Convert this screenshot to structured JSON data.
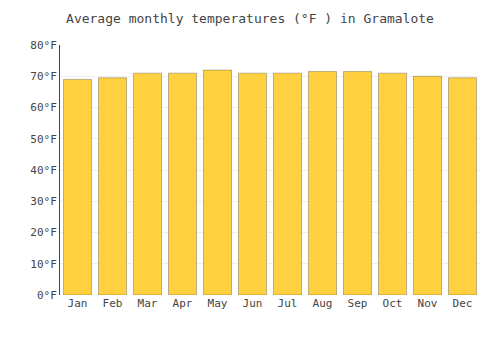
{
  "chart_data": {
    "type": "bar",
    "title": "Average monthly temperatures (°F ) in Gramalote",
    "categories": [
      "Jan",
      "Feb",
      "Mar",
      "Apr",
      "May",
      "Jun",
      "Jul",
      "Aug",
      "Sep",
      "Oct",
      "Nov",
      "Dec"
    ],
    "values": [
      69,
      69.5,
      71,
      71,
      72,
      71,
      71,
      71.5,
      71.5,
      71,
      70,
      69.5
    ],
    "color": "#FFD040",
    "ylim": [
      0,
      80
    ],
    "yticks": [
      {
        "value": 0,
        "label": "0°F"
      },
      {
        "value": 10,
        "label": "10°F"
      },
      {
        "value": 20,
        "label": "20°F"
      },
      {
        "value": 30,
        "label": "30°F"
      },
      {
        "value": 40,
        "label": "40°F"
      },
      {
        "value": 50,
        "label": "50°F"
      },
      {
        "value": 60,
        "label": "60°F"
      },
      {
        "value": 70,
        "label": "70°F"
      },
      {
        "value": 80,
        "label": "80°F"
      }
    ],
    "grid": true
  }
}
